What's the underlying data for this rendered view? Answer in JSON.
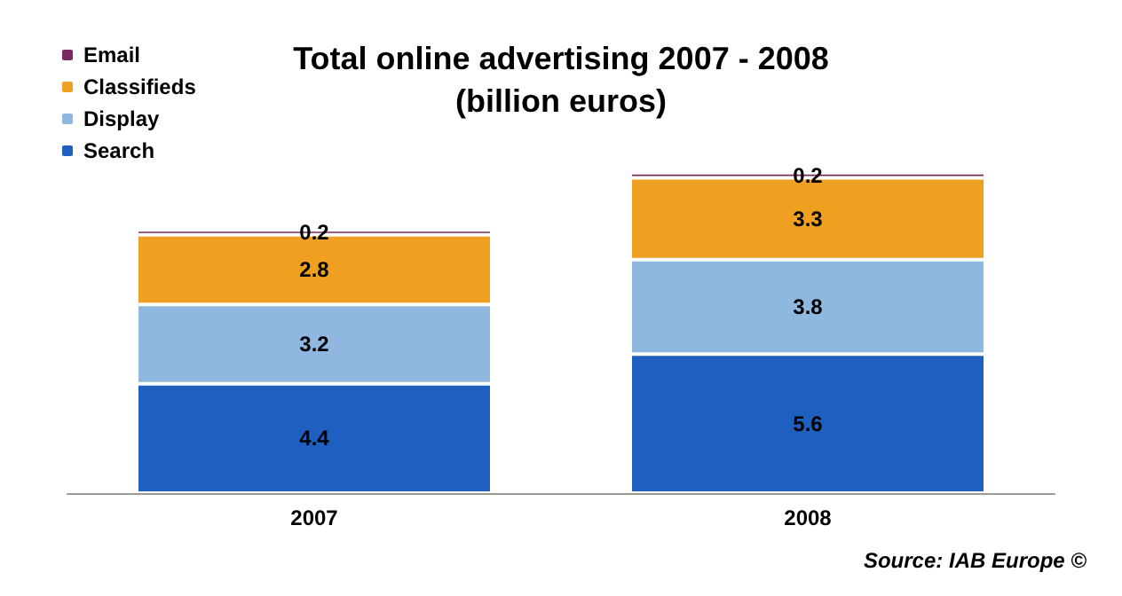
{
  "chart_data": {
    "type": "bar",
    "title": "Total online advertising 2007 - 2008\n(billion euros)",
    "categories": [
      "2007",
      "2008"
    ],
    "stacked": true,
    "data_labels": true,
    "legend": "top left",
    "grid": false,
    "series": [
      {
        "name": "Search",
        "color": "#1f5fbf",
        "values": [
          4.4,
          5.6
        ]
      },
      {
        "name": "Display",
        "color": "#8fb8e0",
        "values": [
          3.2,
          3.8
        ]
      },
      {
        "name": "Classifieds",
        "color": "#f0a020",
        "values": [
          2.8,
          3.3
        ]
      },
      {
        "name": "Email",
        "color": "#7a2a60",
        "values": [
          0.2,
          0.2
        ]
      }
    ],
    "annotations": [
      "Source: IAB Europe ©"
    ]
  }
}
